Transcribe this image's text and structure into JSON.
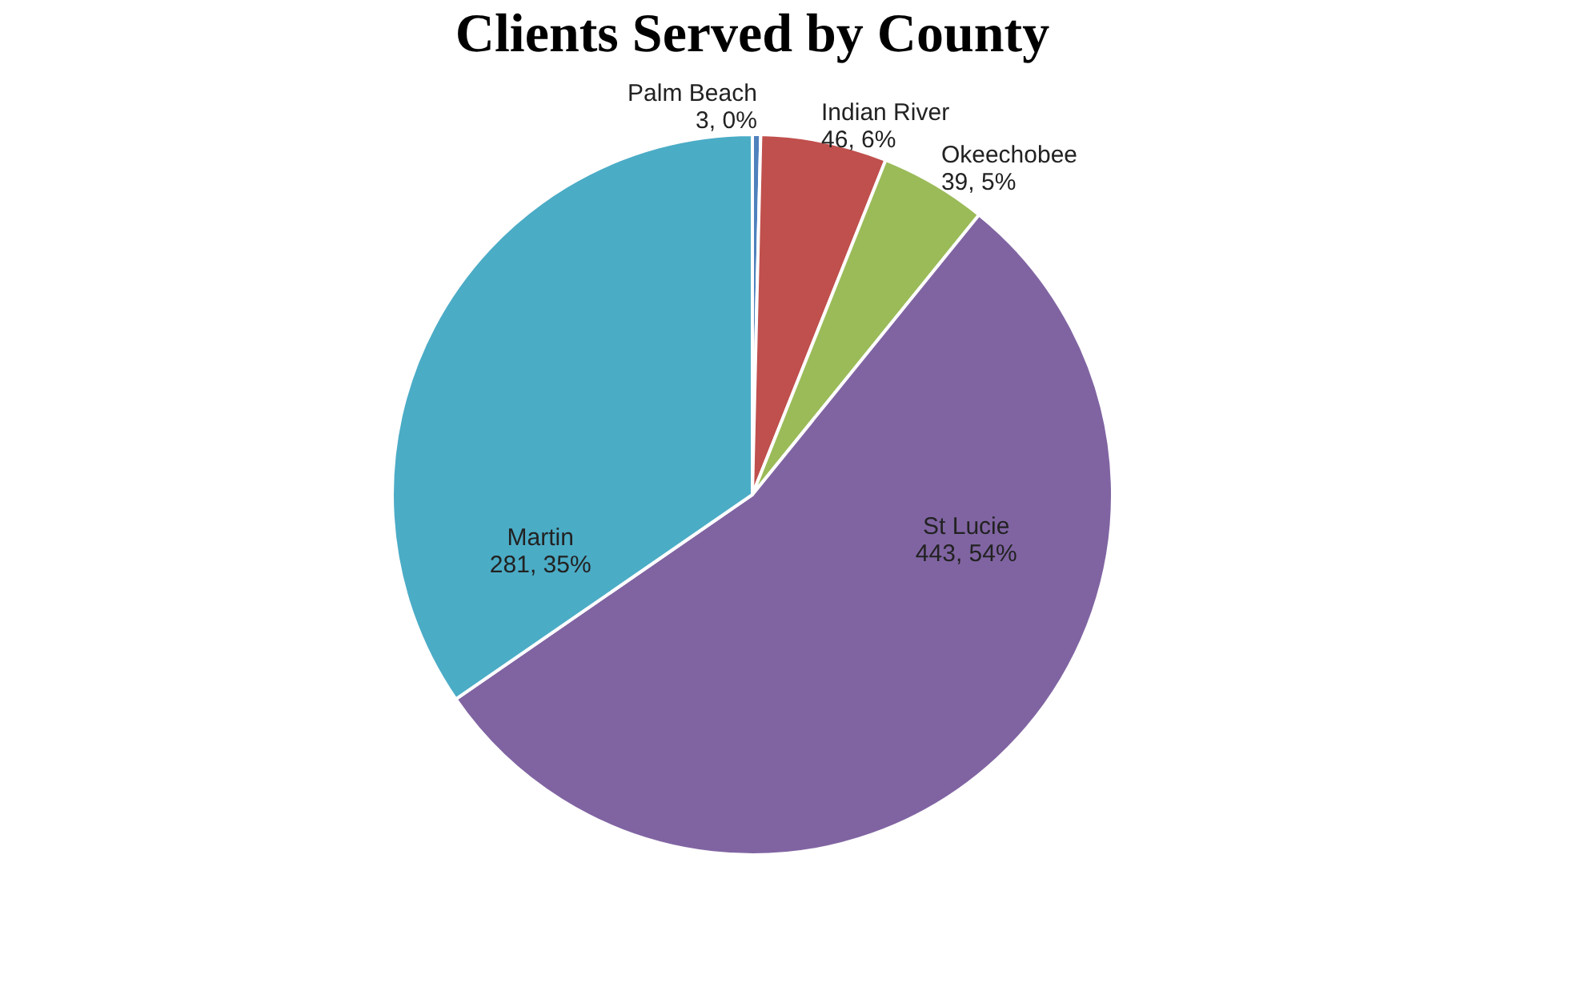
{
  "chart_data": {
    "type": "pie",
    "title": "Clients Served by County",
    "categories": [
      "Palm Beach",
      "Indian River",
      "Okeechobee",
      "St Lucie",
      "Martin"
    ],
    "values": [
      3,
      46,
      39,
      443,
      281
    ],
    "colors": [
      "#4f81bd",
      "#c0504d",
      "#9bbb59",
      "#8064a2",
      "#4bacc6"
    ],
    "value_labels": [
      "3, 0%",
      "46, 6%",
      "39, 5%",
      "443, 54%",
      "281, 35%"
    ],
    "legend": false
  }
}
